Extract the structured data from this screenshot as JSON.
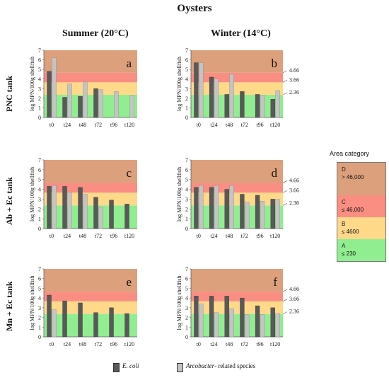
{
  "title": "Oysters",
  "columns": [
    "Summer (20°C)",
    "Winter (14°C)"
  ],
  "rows": [
    "PNC tank",
    "Ab + Ec tank",
    "Mn + Ec tank"
  ],
  "ylabel": "log MPN/100g shellfish",
  "threshold_labels": [
    "4.66",
    "3.66",
    "2.36"
  ],
  "zone_colors": {
    "A": "#90ee90",
    "B": "#ffd98a",
    "C": "#fa8e82",
    "D": "#dca07c"
  },
  "series_colors": {
    "E. coli": "#595959",
    "Arcobacter": "#c4c4c4"
  },
  "legend": {
    "title": "Area category",
    "items": [
      {
        "letter": "D",
        "range": "> 46,000",
        "color": "#dca07c"
      },
      {
        "letter": "C",
        "range": "≤ 46,000",
        "color": "#fa8e82"
      },
      {
        "letter": "B",
        "range": "≤ 4600",
        "color": "#ffd98a"
      },
      {
        "letter": "A",
        "range": "≤ 230",
        "color": "#90ee90"
      }
    ]
  },
  "series_legend": {
    "ecoli": "E. coli",
    "arco": "Arcobacter",
    "arco_suffix": "- related species"
  },
  "chart_data": [
    {
      "type": "bar",
      "panel": "a",
      "categories": [
        "t0",
        "t24",
        "t48",
        "t72",
        "t96",
        "t120"
      ],
      "ylim": [
        0,
        7
      ],
      "yticks": [
        0,
        1,
        2,
        3,
        4,
        5,
        6,
        7
      ],
      "zones": [
        2.36,
        3.66,
        4.66
      ],
      "series": [
        {
          "name": "E. coli",
          "values": [
            4.8,
            2.1,
            2.2,
            3.0,
            null,
            null
          ]
        },
        {
          "name": "Arcobacter- related species",
          "values": [
            6.2,
            3.5,
            3.7,
            2.9,
            2.7,
            2.3
          ]
        }
      ]
    },
    {
      "type": "bar",
      "panel": "b",
      "categories": [
        "t0",
        "t24",
        "t48",
        "t72",
        "t96",
        "t120"
      ],
      "ylim": [
        0,
        7
      ],
      "yticks": [
        0,
        1,
        2,
        3,
        4,
        5,
        6,
        7
      ],
      "zones": [
        2.36,
        3.66,
        4.66
      ],
      "series": [
        {
          "name": "E. coli",
          "values": [
            5.7,
            4.2,
            2.4,
            2.7,
            2.4,
            1.9
          ]
        },
        {
          "name": "Arcobacter- related species",
          "values": [
            5.7,
            4.0,
            4.5,
            null,
            2.3,
            2.8
          ]
        }
      ]
    },
    {
      "type": "bar",
      "panel": "c",
      "categories": [
        "t0",
        "t24",
        "t48",
        "t72",
        "t96",
        "t120"
      ],
      "ylim": [
        0,
        7
      ],
      "yticks": [
        0,
        1,
        2,
        3,
        4,
        5,
        6,
        7
      ],
      "zones": [
        2.36,
        3.66,
        4.66
      ],
      "series": [
        {
          "name": "E. coli",
          "values": [
            4.3,
            4.3,
            4.2,
            3.2,
            2.9,
            2.5
          ]
        },
        {
          "name": "Arcobacter- related species",
          "values": [
            4.4,
            3.7,
            3.5,
            2.2,
            null,
            null
          ]
        }
      ]
    },
    {
      "type": "bar",
      "panel": "d",
      "categories": [
        "t0",
        "t24",
        "t48",
        "t72",
        "t96",
        "t120"
      ],
      "ylim": [
        0,
        7
      ],
      "yticks": [
        0,
        1,
        2,
        3,
        4,
        5,
        6,
        7
      ],
      "zones": [
        2.36,
        3.66,
        4.66
      ],
      "series": [
        {
          "name": "E. coli",
          "values": [
            4.2,
            4.2,
            4.0,
            3.5,
            3.4,
            3.0
          ]
        },
        {
          "name": "Arcobacter- related species",
          "values": [
            4.4,
            4.4,
            4.4,
            2.7,
            2.8,
            3.0
          ]
        }
      ]
    },
    {
      "type": "bar",
      "panel": "e",
      "categories": [
        "t0",
        "t24",
        "t48",
        "t72",
        "t96",
        "t120"
      ],
      "ylim": [
        0,
        7
      ],
      "yticks": [
        0,
        1,
        2,
        3,
        4,
        5,
        6,
        7
      ],
      "zones": [
        2.36,
        3.66,
        4.66
      ],
      "series": [
        {
          "name": "E. coli",
          "values": [
            4.3,
            3.7,
            3.5,
            2.5,
            3.0,
            2.4
          ]
        },
        {
          "name": "Arcobacter- related species",
          "values": [
            2.8,
            null,
            null,
            null,
            null,
            null
          ]
        }
      ]
    },
    {
      "type": "bar",
      "panel": "f",
      "categories": [
        "t0",
        "t24",
        "t48",
        "t72",
        "t96",
        "t120"
      ],
      "ylim": [
        0,
        7
      ],
      "yticks": [
        0,
        1,
        2,
        3,
        4,
        5,
        6,
        7
      ],
      "zones": [
        2.36,
        3.66,
        4.66
      ],
      "series": [
        {
          "name": "E. coli",
          "values": [
            4.2,
            4.2,
            4.2,
            4.0,
            3.2,
            3.0
          ]
        },
        {
          "name": "Arcobacter- related species",
          "values": [
            3.4,
            2.5,
            2.9,
            2.3,
            2.3,
            2.4
          ]
        }
      ]
    }
  ]
}
